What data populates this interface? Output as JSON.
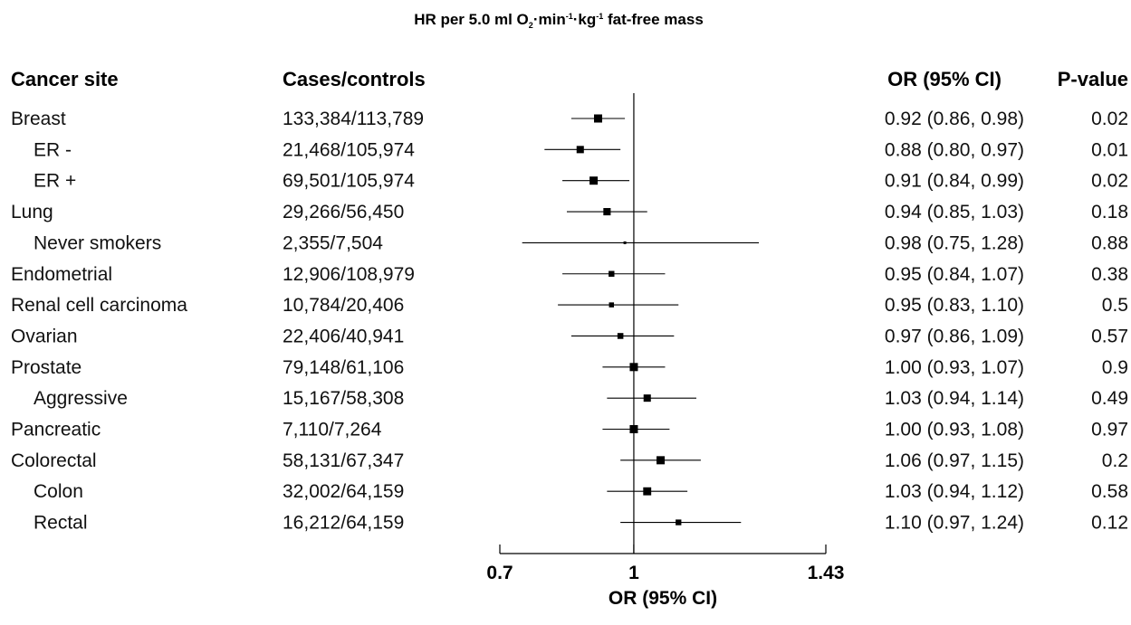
{
  "chart_data": {
    "type": "forest",
    "title": {
      "prefix": "HR per 5.0 ml O",
      "sub": "2",
      "mid1": "·min",
      "sup1": "-1",
      "mid2": "·kg",
      "sup2": "-1",
      "suffix": " fat-free mass"
    },
    "columns": {
      "site": "Cancer site",
      "cases": "Cases/controls",
      "or": "OR (95% CI)",
      "p": "P-value"
    },
    "xlabel": "OR (95% CI)",
    "xlim": [
      0.7,
      1.43
    ],
    "xticks": [
      "0.7",
      "1",
      "1.43"
    ],
    "reference_line": 1,
    "rows": [
      {
        "site": "Breast",
        "indent": 0,
        "cases": "133,384/113,789",
        "or": 0.92,
        "lo": 0.86,
        "hi": 0.98,
        "or_text": "0.92 (0.86, 0.98)",
        "p": "0.02"
      },
      {
        "site": "ER -",
        "indent": 1,
        "cases": "21,468/105,974",
        "or": 0.88,
        "lo": 0.8,
        "hi": 0.97,
        "or_text": "0.88 (0.80, 0.97)",
        "p": "0.01"
      },
      {
        "site": "ER +",
        "indent": 1,
        "cases": "69,501/105,974",
        "or": 0.91,
        "lo": 0.84,
        "hi": 0.99,
        "or_text": "0.91 (0.84, 0.99)",
        "p": "0.02"
      },
      {
        "site": "Lung",
        "indent": 0,
        "cases": "29,266/56,450",
        "or": 0.94,
        "lo": 0.85,
        "hi": 1.03,
        "or_text": "0.94 (0.85, 1.03)",
        "p": "0.18"
      },
      {
        "site": "Never smokers",
        "indent": 1,
        "cases": "2,355/7,504",
        "or": 0.98,
        "lo": 0.75,
        "hi": 1.28,
        "or_text": "0.98 (0.75, 1.28)",
        "p": "0.88"
      },
      {
        "site": "Endometrial",
        "indent": 0,
        "cases": "12,906/108,979",
        "or": 0.95,
        "lo": 0.84,
        "hi": 1.07,
        "or_text": "0.95 (0.84, 1.07)",
        "p": "0.38"
      },
      {
        "site": "Renal cell carcinoma",
        "indent": 0,
        "cases": "10,784/20,406",
        "or": 0.95,
        "lo": 0.83,
        "hi": 1.1,
        "or_text": "0.95 (0.83, 1.10)",
        "p": "0.5"
      },
      {
        "site": "Ovarian",
        "indent": 0,
        "cases": "22,406/40,941",
        "or": 0.97,
        "lo": 0.86,
        "hi": 1.09,
        "or_text": "0.97 (0.86, 1.09)",
        "p": "0.57"
      },
      {
        "site": "Prostate",
        "indent": 0,
        "cases": "79,148/61,106",
        "or": 1.0,
        "lo": 0.93,
        "hi": 1.07,
        "or_text": "1.00 (0.93, 1.07)",
        "p": "0.9"
      },
      {
        "site": "Aggressive",
        "indent": 1,
        "cases": "15,167/58,308",
        "or": 1.03,
        "lo": 0.94,
        "hi": 1.14,
        "or_text": "1.03 (0.94, 1.14)",
        "p": "0.49"
      },
      {
        "site": "Pancreatic",
        "indent": 0,
        "cases": "7,110/7,264",
        "or": 1.0,
        "lo": 0.93,
        "hi": 1.08,
        "or_text": "1.00 (0.93, 1.08)",
        "p": "0.97"
      },
      {
        "site": "Colorectal",
        "indent": 0,
        "cases": "58,131/67,347",
        "or": 1.06,
        "lo": 0.97,
        "hi": 1.15,
        "or_text": "1.06 (0.97, 1.15)",
        "p": "0.2"
      },
      {
        "site": "Colon",
        "indent": 1,
        "cases": "32,002/64,159",
        "or": 1.03,
        "lo": 0.94,
        "hi": 1.12,
        "or_text": "1.03 (0.94, 1.12)",
        "p": "0.58"
      },
      {
        "site": "Rectal",
        "indent": 1,
        "cases": "16,212/64,159",
        "or": 1.1,
        "lo": 0.97,
        "hi": 1.24,
        "or_text": "1.10 (0.97, 1.24)",
        "p": "0.12"
      }
    ]
  }
}
